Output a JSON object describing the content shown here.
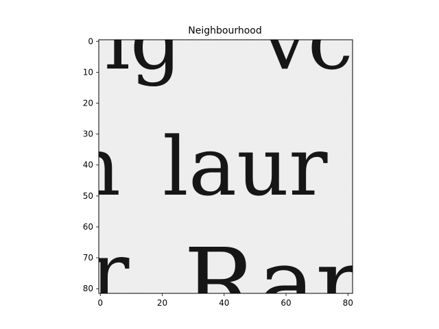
{
  "figure": {
    "title": "Neighbourhood"
  },
  "axes": {
    "x_ticks": [
      "0",
      "20",
      "40",
      "60",
      "80"
    ],
    "y_ticks": [
      "0",
      "10",
      "20",
      "30",
      "40",
      "50",
      "60",
      "70",
      "80"
    ],
    "x_range": [
      -0.5,
      81.5
    ],
    "y_range": [
      81.5,
      -0.5
    ]
  },
  "image": {
    "type": "grayscale image patch",
    "pixel_size": [
      82,
      82
    ],
    "background_color": "#f1f1f1",
    "ink_color": "#161616",
    "text_fragments": [
      "ig",
      "vc",
      "n",
      "laur",
      "r",
      "Rar"
    ]
  }
}
